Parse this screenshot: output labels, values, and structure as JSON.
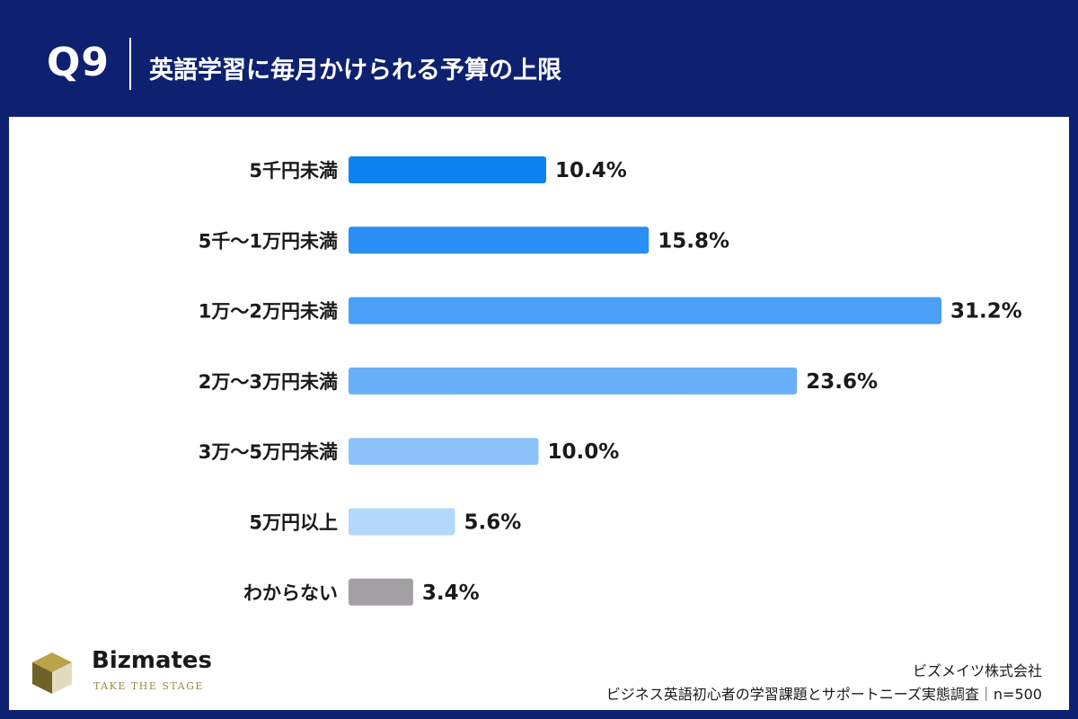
{
  "header": {
    "question": "Q9",
    "title": "英語学習に毎月かけられる予算の上限"
  },
  "chart_data": {
    "type": "bar",
    "orientation": "horizontal",
    "categories": [
      "5千円未満",
      "5千〜1万円未満",
      "1万〜2万円未満",
      "2万〜3万円未満",
      "3万〜5万円未満",
      "5万円以上",
      "わからない"
    ],
    "values": [
      10.4,
      15.8,
      31.2,
      23.6,
      10.0,
      5.6,
      3.4
    ],
    "value_labels": [
      "10.4%",
      "15.8%",
      "31.2%",
      "23.6%",
      "10.0%",
      "5.6%",
      "3.4%"
    ],
    "colors": [
      "#0d82f0",
      "#2a8ff3",
      "#4a9ff6",
      "#68b0f8",
      "#8cc2fa",
      "#b3d8fc",
      "#a3a0a3"
    ],
    "xlim": [
      0,
      31.2
    ],
    "grid": false,
    "legend": "none"
  },
  "brand": {
    "name": "Bizmates",
    "tagline": "TAKE THE STAGE",
    "mark_colors": [
      "#b8a24a",
      "#6f6228",
      "#e3dac0"
    ]
  },
  "footer": {
    "company": "ビズメイツ株式会社",
    "survey": "ビジネス英語初心者の学習課題とサポートニーズ実態調査｜n=500"
  }
}
